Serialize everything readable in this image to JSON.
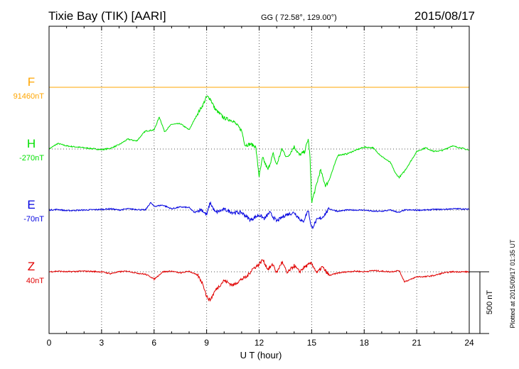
{
  "header": {
    "station": "Tixie Bay (TIK)  [AARI]",
    "coords": "GG ( 72.58°, 129.00°)",
    "date": "2015/08/17"
  },
  "plotted_at": "Plotted at 2015/09/17 01:35 UT",
  "scale_label": "500 nT",
  "colors": {
    "F": "#ffa500",
    "H": "#00e000",
    "E": "#0000e0",
    "Z": "#e00000"
  },
  "chart_data": {
    "type": "line",
    "title": "Tixie Bay (TIK)  [AARI]",
    "xlabel": "U T (hour)",
    "xlim": [
      0,
      24
    ],
    "x_ticks": [
      "0",
      "3",
      "6",
      "9",
      "12",
      "15",
      "18",
      "21",
      "24"
    ],
    "grid": true,
    "scale_bar_nT": 500,
    "series": [
      {
        "name": "F",
        "baseline_label": "91460nT",
        "baseline": 91460,
        "x": [
          0,
          24
        ],
        "values": [
          0,
          0
        ]
      },
      {
        "name": "H",
        "baseline_label": "-270nT",
        "baseline": -270,
        "x": [
          0,
          0.5,
          1,
          2,
          3,
          3.5,
          4,
          4.5,
          5,
          5.5,
          6,
          6.3,
          6.6,
          7,
          7.5,
          8,
          8.5,
          8.8,
          9,
          9.2,
          9.5,
          10,
          10.5,
          11,
          11.2,
          11.5,
          11.8,
          12,
          12.2,
          12.5,
          12.8,
          13,
          13.3,
          13.6,
          14,
          14.3,
          14.6,
          14.8,
          14.9,
          15,
          15.2,
          15.5,
          15.8,
          16,
          16.5,
          17,
          17.5,
          18,
          18.5,
          19,
          19.5,
          19.8,
          20,
          20.3,
          20.7,
          21,
          21.5,
          22,
          22.5,
          23,
          23.5,
          24
        ],
        "values": [
          0,
          45,
          25,
          10,
          -5,
          5,
          35,
          80,
          65,
          145,
          155,
          260,
          140,
          200,
          205,
          155,
          290,
          360,
          425,
          410,
          320,
          250,
          230,
          150,
          30,
          40,
          20,
          -220,
          -70,
          -170,
          -40,
          -130,
          0,
          -70,
          20,
          -50,
          -20,
          80,
          -50,
          -430,
          -330,
          -170,
          -300,
          -250,
          -50,
          -40,
          -10,
          15,
          10,
          -60,
          -110,
          -200,
          -230,
          -180,
          -90,
          -20,
          10,
          -20,
          -10,
          25,
          10,
          -10
        ]
      },
      {
        "name": "E",
        "baseline_label": "-70nT",
        "baseline": -70,
        "x": [
          0,
          0.5,
          1,
          2,
          3,
          3.5,
          4,
          4.5,
          5,
          5.5,
          5.8,
          6,
          6.5,
          7,
          7.5,
          8,
          8.3,
          8.7,
          9,
          9.2,
          9.5,
          10,
          10.5,
          11,
          11.5,
          12,
          12.3,
          12.6,
          13,
          13.5,
          14,
          14.5,
          14.8,
          15,
          15.3,
          15.6,
          16,
          16.5,
          17,
          17.5,
          18,
          18.5,
          19,
          19.5,
          20,
          20.3,
          20.7,
          21,
          21.5,
          22,
          22.5,
          23,
          23.5,
          24
        ],
        "values": [
          0,
          5,
          -5,
          0,
          5,
          10,
          0,
          10,
          5,
          0,
          60,
          30,
          40,
          10,
          25,
          20,
          -20,
          5,
          -40,
          60,
          -20,
          5,
          -20,
          -20,
          -80,
          -40,
          -70,
          -20,
          -90,
          -40,
          -20,
          -100,
          0,
          -150,
          -80,
          -60,
          10,
          -10,
          0,
          0,
          0,
          -10,
          -10,
          0,
          -20,
          0,
          0,
          0,
          0,
          5,
          5,
          10,
          10,
          5
        ]
      },
      {
        "name": "Z",
        "baseline_label": "40nT",
        "baseline": 40,
        "x": [
          0,
          0.5,
          1,
          2,
          3,
          3.5,
          4,
          4.5,
          5,
          5.5,
          5.8,
          6,
          6.5,
          7,
          7.5,
          8,
          8.5,
          8.8,
          9,
          9.2,
          9.5,
          10,
          10.5,
          11,
          11.3,
          11.6,
          12,
          12.2,
          12.5,
          12.8,
          13,
          13.3,
          13.6,
          14,
          14.3,
          14.6,
          15,
          15.3,
          15.6,
          16,
          16.5,
          17,
          17.5,
          18,
          18.5,
          19,
          19.5,
          20,
          20.3,
          20.7,
          21,
          21.5,
          22,
          22.5,
          23,
          23.5,
          24
        ],
        "values": [
          0,
          5,
          0,
          5,
          0,
          -15,
          0,
          5,
          -10,
          -20,
          -40,
          -60,
          0,
          5,
          -10,
          5,
          -30,
          -100,
          -200,
          -230,
          -150,
          -70,
          -110,
          -60,
          -40,
          20,
          60,
          100,
          20,
          60,
          -10,
          80,
          -10,
          50,
          0,
          40,
          70,
          -10,
          40,
          -30,
          -10,
          0,
          5,
          0,
          10,
          5,
          0,
          10,
          -80,
          -60,
          -40,
          -40,
          -30,
          -10,
          0,
          0,
          0
        ]
      }
    ]
  }
}
